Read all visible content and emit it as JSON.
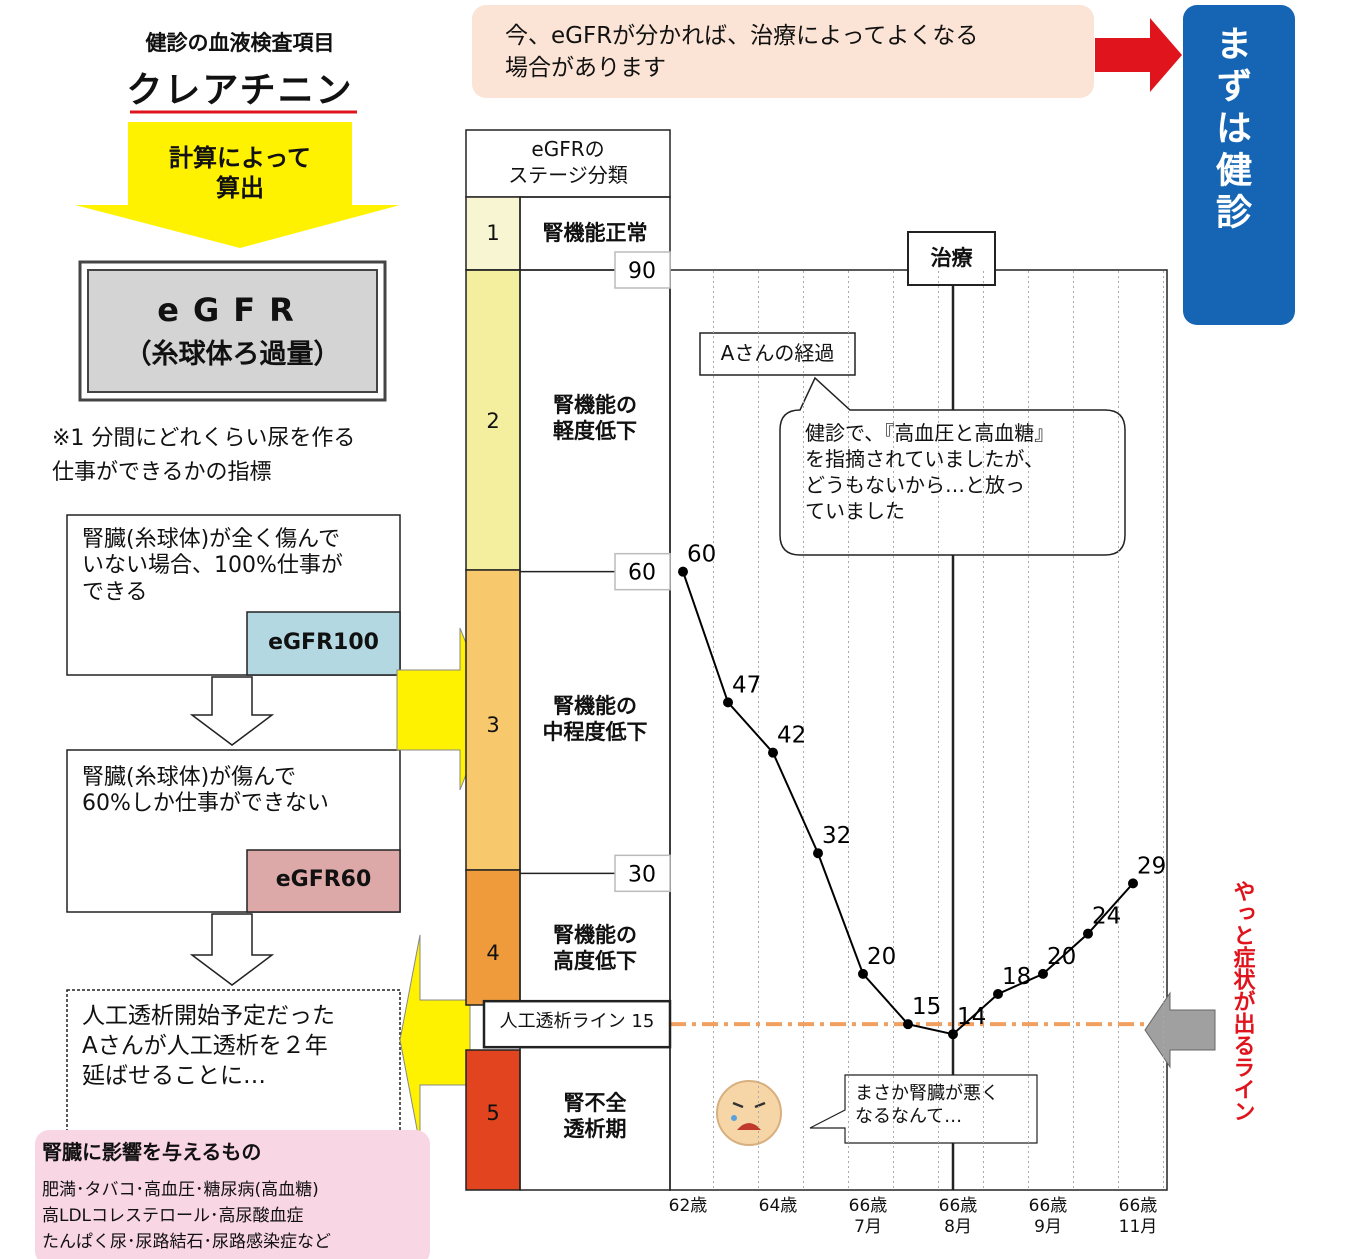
{
  "header": {
    "subtitle": "健診の血液検査項目",
    "title": "クレアチニン",
    "calc_arrow": "計算によって\n算出"
  },
  "egfr_box": {
    "title": "eGFR",
    "subtitle": "（糸球体ろ過量）"
  },
  "note": "※1 分間にどれくらい尿を作る\n仕事ができるかの指標",
  "flow": [
    {
      "text": "腎臓(糸球体)が全く傷んで\nいない場合、100%仕事が\nできる",
      "badge": "eGFR100"
    },
    {
      "text": "腎臓(糸球体)が傷んで\n60%しか仕事ができない",
      "badge": "eGFR60"
    },
    {
      "text": "人工透析開始予定だった\nAさんが人工透析を２年\n延ばせることに…"
    }
  ],
  "factors": {
    "title": "腎臓に影響を与えるもの",
    "lines": [
      "肥満･タバコ･高血圧･糖尿病(高血糖)",
      "高LDLコレステロール･高尿酸血症",
      "たんぱく尿･尿路結石･尿路感染症など"
    ]
  },
  "banner": "今、eGFRが分かれば、治療によってよくなる\n場合があります",
  "cta": "まずは健診",
  "symptom_line": "やっと症状が出るライン",
  "stage_table": {
    "header": "eGFRの\nステージ分類",
    "stages": [
      {
        "number": "1",
        "label": "腎機能正常"
      },
      {
        "number": "2",
        "label": "腎機能の\n軽度低下"
      },
      {
        "number": "3",
        "label": "腎機能の\n中程度低下"
      },
      {
        "number": "4",
        "label": "腎機能の\n高度低下"
      },
      {
        "number": "5",
        "label": "腎不全\n透析期"
      }
    ]
  },
  "chart_data": {
    "type": "line",
    "categories": [
      "62歳",
      null,
      "64歳",
      null,
      "66歳\n7月",
      null,
      "66歳\n8月",
      null,
      "66歳\n9月",
      null,
      "66歳\n11月"
    ],
    "values": [
      60,
      47,
      42,
      32,
      20,
      15,
      14,
      18,
      20,
      24,
      29
    ],
    "color": "#000000",
    "ylim": [
      0,
      90
    ],
    "yticks": [
      30,
      60,
      90
    ],
    "reference_line": {
      "label": "人工透析ライン 15",
      "value": 15,
      "color": "#f0a060"
    },
    "annotations": {
      "treatment": "治療",
      "series_label": "Aさんの経過",
      "callout": "健診で、『高血圧と高血糖』\nを指摘されていましたが、\nどうもないから…と放っ\nていました",
      "patient_quote": "まさか腎臓が悪く\nなるなんて…"
    }
  }
}
